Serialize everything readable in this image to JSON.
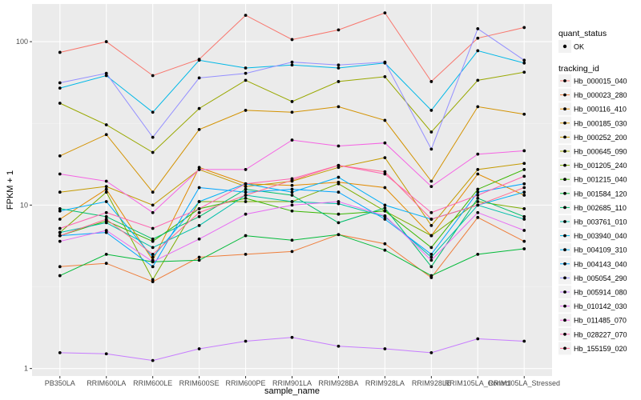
{
  "chart_data": {
    "type": "line",
    "xlabel": "sample_name",
    "ylabel": "FPKM + 1",
    "yscale": "log10",
    "ylim": [
      0.9,
      170
    ],
    "yticks": [
      1,
      10,
      100
    ],
    "ytick_labels": [
      "1",
      "10",
      "100"
    ],
    "grid": true,
    "legend_position": "right",
    "categories": [
      "PB350LA",
      "RRIM600LA",
      "RRIM600LE",
      "RRIM600SE",
      "RRIM600PE",
      "RRIM901LA",
      "RRIM928BA",
      "RRIM928LA",
      "RRIM928LE",
      "RRIM105LA_Control",
      "RRIM105LA_Stressed"
    ],
    "legend_shape": {
      "title": "quant_status",
      "items": [
        {
          "label": "OK"
        }
      ]
    },
    "legend_color": {
      "title": "tracking_id"
    },
    "series": [
      {
        "name": "Hb_000015_040",
        "color": "#F8766D",
        "values": [
          86,
          100,
          62,
          78,
          145,
          103,
          118,
          150,
          57,
          105,
          122
        ]
      },
      {
        "name": "Hb_000023_280",
        "color": "#EE7E3B",
        "values": [
          4.2,
          4.4,
          3.4,
          4.8,
          5.0,
          5.2,
          6.6,
          5.8,
          3.6,
          8.4,
          6.0
        ]
      },
      {
        "name": "Hb_000116_410",
        "color": "#E18A00",
        "values": [
          8.2,
          12.5,
          4.6,
          17,
          13.5,
          13.2,
          13.8,
          12.8,
          6.5,
          15.5,
          11.5
        ]
      },
      {
        "name": "Hb_000185_030",
        "color": "#D39200",
        "values": [
          20,
          27,
          12,
          29,
          38,
          37,
          40,
          33,
          14,
          40,
          36
        ]
      },
      {
        "name": "Hb_000252_200",
        "color": "#C49A00",
        "values": [
          12,
          13,
          10,
          16.5,
          13,
          14,
          17,
          19.5,
          7.5,
          16.5,
          18
        ]
      },
      {
        "name": "Hb_000645_090",
        "color": "#99A800",
        "values": [
          42,
          31,
          21,
          39,
          58,
          43,
          57,
          61,
          28,
          58,
          65
        ]
      },
      {
        "name": "Hb_001205_240",
        "color": "#7CAE00",
        "values": [
          6.8,
          12,
          3.5,
          10.5,
          10.5,
          10.5,
          13.5,
          9.2,
          6.5,
          10.5,
          9.5
        ]
      },
      {
        "name": "Hb_001215_040",
        "color": "#39B600",
        "values": [
          6.5,
          8.0,
          6.0,
          9.5,
          11.0,
          9.2,
          8.8,
          9.2,
          5.5,
          12.5,
          16.5
        ]
      },
      {
        "name": "Hb_001584_120",
        "color": "#00BA38",
        "values": [
          3.7,
          5.0,
          4.5,
          4.6,
          6.5,
          6.1,
          6.6,
          5.3,
          3.7,
          5.0,
          5.4
        ]
      },
      {
        "name": "Hb_002685_110",
        "color": "#00BE6C",
        "values": [
          9.5,
          8.5,
          6.2,
          8.5,
          12.5,
          11.5,
          7.8,
          9.6,
          4.2,
          11.0,
          8.5
        ]
      },
      {
        "name": "Hb_003761_010",
        "color": "#00BFAA",
        "values": [
          6.8,
          7.8,
          5.5,
          7.5,
          11.5,
          10.5,
          10.2,
          8.5,
          4.8,
          10.0,
          8.2
        ]
      },
      {
        "name": "Hb_003940_040",
        "color": "#00B8E7",
        "values": [
          52,
          62,
          37,
          77,
          69,
          72,
          69,
          74,
          38,
          88,
          74
        ]
      },
      {
        "name": "Hb_004109_310",
        "color": "#00B0F6",
        "values": [
          9.2,
          10.5,
          4.8,
          10.5,
          13.5,
          12.0,
          14.8,
          10.0,
          8.2,
          10.0,
          12.0
        ]
      },
      {
        "name": "Hb_004143_040",
        "color": "#00A5FF",
        "values": [
          6.5,
          6.8,
          4.2,
          12.8,
          12.0,
          12.5,
          12.0,
          8.2,
          5.0,
          12.0,
          13.5
        ]
      },
      {
        "name": "Hb_005054_290",
        "color": "#9590FF",
        "values": [
          56,
          64,
          26,
          60,
          64,
          75,
          72,
          75,
          22,
          120,
          77
        ]
      },
      {
        "name": "Hb_005914_080",
        "color": "#C77CFF",
        "values": [
          1.25,
          1.23,
          1.12,
          1.32,
          1.47,
          1.55,
          1.37,
          1.32,
          1.25,
          1.52,
          1.47
        ]
      },
      {
        "name": "Hb_010142_030",
        "color": "#E76BF3",
        "values": [
          6.0,
          7.0,
          4.5,
          6.2,
          8.8,
          10.0,
          10.5,
          8.6,
          4.6,
          9.0,
          7.0
        ]
      },
      {
        "name": "Hb_011485_070",
        "color": "#F564E3",
        "values": [
          15.5,
          14,
          9,
          16.5,
          16.5,
          25,
          23,
          24,
          13,
          20.5,
          21.5
        ]
      },
      {
        "name": "Hb_028227_070",
        "color": "#FF64B0",
        "values": [
          7.2,
          9.0,
          7.2,
          9.5,
          13.5,
          14.5,
          17.5,
          15.5,
          9.0,
          11.5,
          15.0
        ]
      },
      {
        "name": "Hb_155159_020",
        "color": "#FF6C91",
        "values": [
          6.5,
          8.2,
          5.0,
          9.0,
          11.5,
          14.2,
          17.5,
          16.0,
          8.2,
          10.0,
          12.8
        ]
      }
    ]
  }
}
